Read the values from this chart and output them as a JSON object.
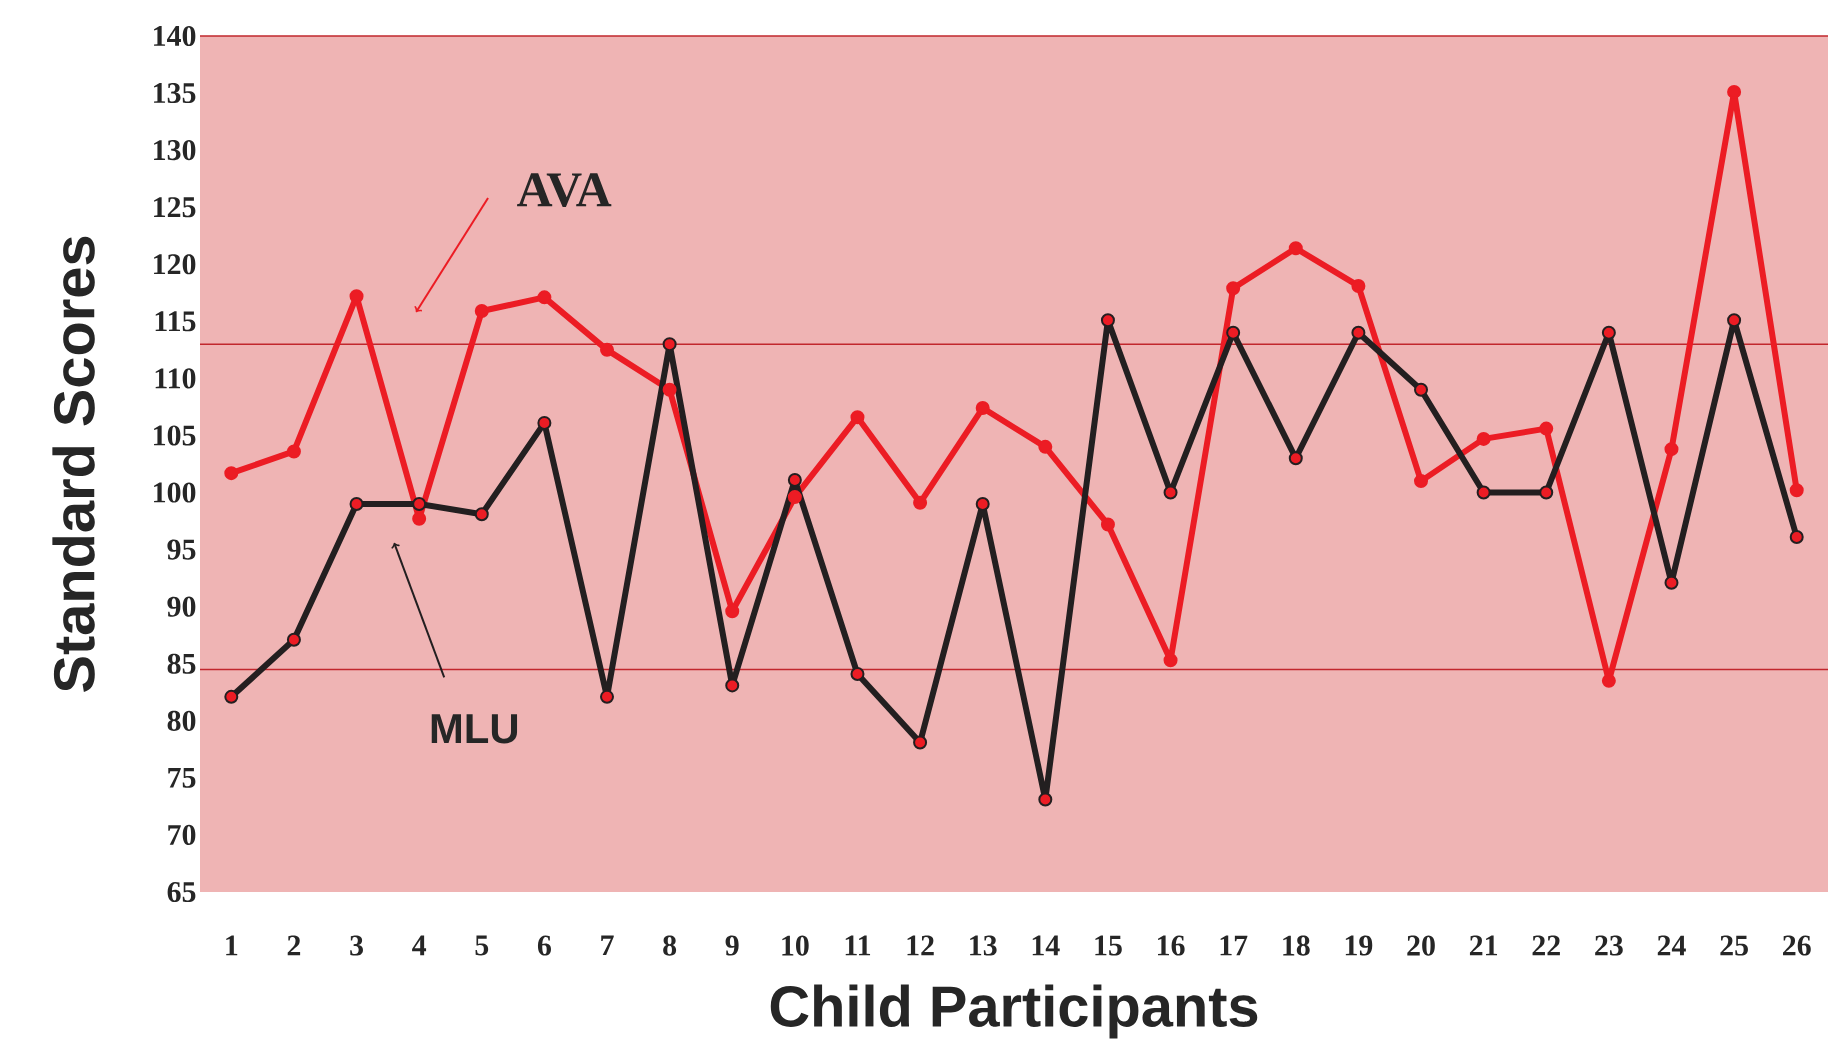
{
  "chart_data": {
    "type": "line",
    "xlabel": "Child Participants",
    "ylabel": "Standard Scores",
    "categories": [
      "1",
      "2",
      "3",
      "4",
      "5",
      "6",
      "7",
      "8",
      "9",
      "10",
      "11",
      "12",
      "13",
      "14",
      "15",
      "16",
      "17",
      "18",
      "19",
      "20",
      "21",
      "22",
      "23",
      "24",
      "25",
      "26"
    ],
    "series": [
      {
        "name": "AVA",
        "color": "#ec1c24",
        "values": [
          101.7,
          103.6,
          117.2,
          97.7,
          115.9,
          117.1,
          112.5,
          109,
          89.6,
          99.6,
          106.6,
          99.1,
          107.4,
          104,
          97.2,
          85.3,
          117.9,
          121.4,
          118.1,
          101,
          104.7,
          105.6,
          83.5,
          103.8,
          135.1,
          100.2
        ]
      },
      {
        "name": "MLU",
        "color": "#231f20",
        "values": [
          82.1,
          87.1,
          99,
          99,
          98.1,
          106.1,
          82.1,
          113,
          83.1,
          101.1,
          84.1,
          78.1,
          99,
          73.1,
          115.1,
          100,
          114,
          103,
          114,
          109,
          100,
          100,
          114,
          92.1,
          115.1,
          96.1
        ]
      }
    ],
    "ylim": [
      65,
      140
    ],
    "yticks": [
      65,
      70,
      75,
      80,
      85,
      90,
      95,
      100,
      105,
      110,
      115,
      120,
      125,
      130,
      135,
      140
    ],
    "ref_lines": [
      {
        "axis": "y",
        "value": 113,
        "color": "#c1272d"
      },
      {
        "axis": "y",
        "value": 84.5,
        "color": "#c1272d"
      }
    ],
    "marker": "circle",
    "line_style": "solid",
    "grid": false
  }
}
